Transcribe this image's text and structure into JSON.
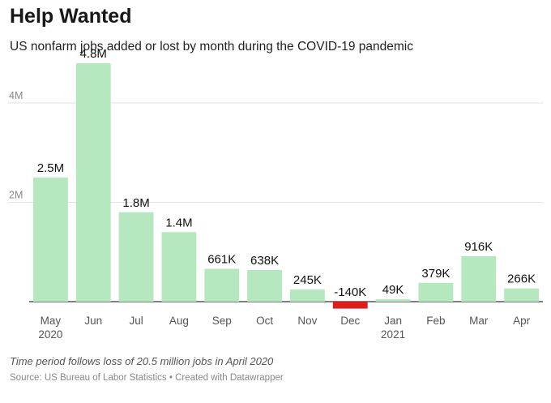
{
  "header": {
    "title": "Help Wanted",
    "subtitle": "US nonfarm jobs added or lost by month during the COVID-19 pandemic"
  },
  "footer": {
    "note": "Time period follows loss of 20.5 million jobs in April 2020",
    "source": "Source: US Bureau of Labor Statistics • Created with Datawrapper"
  },
  "chart_data": {
    "type": "bar",
    "title": "Help Wanted",
    "subtitle": "US nonfarm jobs added or lost by month during the COVID-19 pandemic",
    "categories": [
      "May",
      "Jun",
      "Jul",
      "Aug",
      "Sep",
      "Oct",
      "Nov",
      "Dec",
      "Jan",
      "Feb",
      "Mar",
      "Apr"
    ],
    "year_labels": [
      "2020",
      "",
      "",
      "",
      "",
      "",
      "",
      "",
      "2021",
      "",
      "",
      ""
    ],
    "values": [
      2500000,
      4800000,
      1800000,
      1400000,
      661000,
      638000,
      245000,
      -140000,
      49000,
      379000,
      916000,
      266000
    ],
    "data_labels": [
      "2.5M",
      "4.8M",
      "1.8M",
      "1.4M",
      "661K",
      "638K",
      "245K",
      "-140K",
      "49K",
      "379K",
      "916K",
      "266K"
    ],
    "ylim": [
      -150000,
      4850000
    ],
    "yticks": [
      {
        "value": 2000000,
        "label": "2M"
      },
      {
        "value": 4000000,
        "label": "4M"
      }
    ],
    "xlabel": "",
    "ylabel": "",
    "grid": true,
    "colors": {
      "positive": "#b5e8bf",
      "negative": "#e01d1d",
      "grid": "#e2e2e2",
      "baseline": "#333333"
    }
  }
}
